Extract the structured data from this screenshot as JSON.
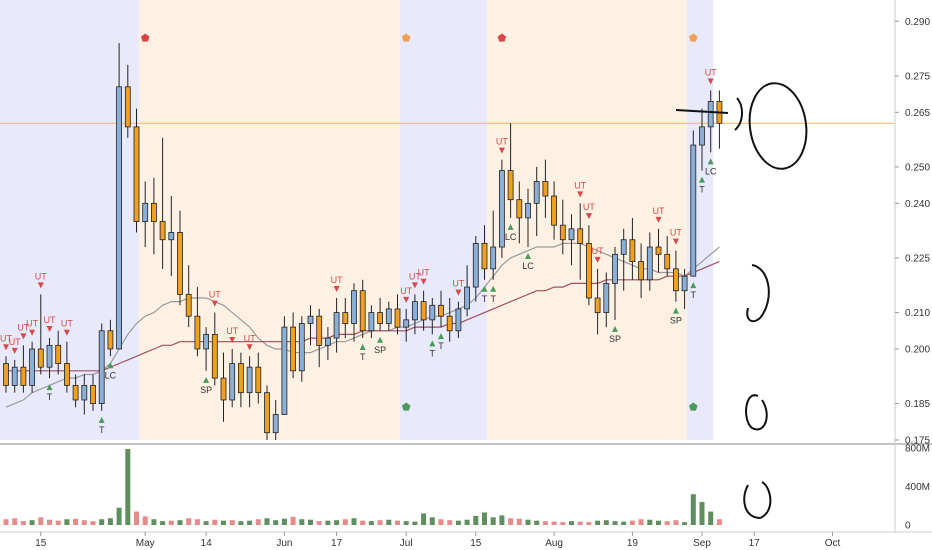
{
  "chart_data": {
    "type": "candlestick",
    "price_axis": {
      "ticks": [
        "0.290",
        "0.275",
        "0.265",
        "0.250",
        "0.240",
        "0.225",
        "0.210",
        "0.200",
        "0.185",
        "0.175"
      ],
      "range": [
        0.175,
        0.292
      ]
    },
    "volume_axis": {
      "ticks": [
        "800M",
        "400M",
        "0"
      ],
      "range": [
        0,
        800
      ]
    },
    "x_axis": {
      "ticks": [
        {
          "label": "15",
          "i": 4
        },
        {
          "label": "May",
          "i": 16
        },
        {
          "label": "14",
          "i": 23
        },
        {
          "label": "Jun",
          "i": 32
        },
        {
          "label": "17",
          "i": 38
        },
        {
          "label": "Jul",
          "i": 46
        },
        {
          "label": "15",
          "i": 54
        },
        {
          "label": "Aug",
          "i": 63
        },
        {
          "label": "19",
          "i": 72
        },
        {
          "label": "Sep",
          "i": 80
        },
        {
          "label": "17",
          "i": 86
        },
        {
          "label": "Oct",
          "i": 95
        }
      ]
    },
    "price_line": 0.262,
    "zones": [
      {
        "start": -0.5,
        "end": 15.5,
        "color": "#e8e9fb"
      },
      {
        "start": 15.5,
        "end": 45.5,
        "color": "#fdf1e4"
      },
      {
        "start": 45.5,
        "end": 55.5,
        "color": "#e8e9fb"
      },
      {
        "start": 55.5,
        "end": 78.5,
        "color": "#fdf1e4"
      },
      {
        "start": 78.5,
        "end": 81.5,
        "color": "#e8e9fb"
      }
    ],
    "candles": [
      [
        0.196,
        0.198,
        0.188,
        0.19
      ],
      [
        0.19,
        0.197,
        0.188,
        0.195
      ],
      [
        0.195,
        0.201,
        0.188,
        0.19
      ],
      [
        0.19,
        0.202,
        0.188,
        0.2
      ],
      [
        0.2,
        0.215,
        0.193,
        0.195
      ],
      [
        0.195,
        0.203,
        0.192,
        0.201
      ],
      [
        0.201,
        0.205,
        0.193,
        0.196
      ],
      [
        0.196,
        0.202,
        0.188,
        0.19
      ],
      [
        0.19,
        0.193,
        0.184,
        0.186
      ],
      [
        0.186,
        0.193,
        0.182,
        0.19
      ],
      [
        0.19,
        0.193,
        0.183,
        0.185
      ],
      [
        0.185,
        0.207,
        0.183,
        0.205
      ],
      [
        0.205,
        0.208,
        0.198,
        0.2
      ],
      [
        0.2,
        0.284,
        0.2,
        0.272
      ],
      [
        0.272,
        0.278,
        0.258,
        0.261
      ],
      [
        0.261,
        0.266,
        0.232,
        0.235
      ],
      [
        0.235,
        0.246,
        0.228,
        0.24
      ],
      [
        0.24,
        0.247,
        0.226,
        0.235
      ],
      [
        0.235,
        0.258,
        0.222,
        0.23
      ],
      [
        0.23,
        0.242,
        0.22,
        0.232
      ],
      [
        0.232,
        0.238,
        0.212,
        0.215
      ],
      [
        0.215,
        0.223,
        0.206,
        0.209
      ],
      [
        0.209,
        0.217,
        0.198,
        0.2
      ],
      [
        0.2,
        0.206,
        0.194,
        0.204
      ],
      [
        0.204,
        0.21,
        0.19,
        0.192
      ],
      [
        0.192,
        0.199,
        0.18,
        0.186
      ],
      [
        0.186,
        0.2,
        0.184,
        0.196
      ],
      [
        0.196,
        0.199,
        0.184,
        0.188
      ],
      [
        0.188,
        0.198,
        0.184,
        0.195
      ],
      [
        0.195,
        0.199,
        0.185,
        0.188
      ],
      [
        0.188,
        0.19,
        0.175,
        0.177
      ],
      [
        0.177,
        0.186,
        0.175,
        0.182
      ],
      [
        0.182,
        0.209,
        0.182,
        0.206
      ],
      [
        0.206,
        0.21,
        0.192,
        0.194
      ],
      [
        0.194,
        0.209,
        0.191,
        0.207
      ],
      [
        0.207,
        0.212,
        0.201,
        0.209
      ],
      [
        0.209,
        0.211,
        0.195,
        0.201
      ],
      [
        0.201,
        0.206,
        0.197,
        0.203
      ],
      [
        0.203,
        0.214,
        0.199,
        0.21
      ],
      [
        0.21,
        0.214,
        0.203,
        0.207
      ],
      [
        0.207,
        0.218,
        0.202,
        0.216
      ],
      [
        0.216,
        0.219,
        0.203,
        0.205
      ],
      [
        0.205,
        0.212,
        0.203,
        0.21
      ],
      [
        0.21,
        0.214,
        0.205,
        0.207
      ],
      [
        0.207,
        0.213,
        0.205,
        0.211
      ],
      [
        0.211,
        0.215,
        0.204,
        0.206
      ],
      [
        0.206,
        0.211,
        0.202,
        0.208
      ],
      [
        0.208,
        0.215,
        0.204,
        0.213
      ],
      [
        0.213,
        0.216,
        0.205,
        0.208
      ],
      [
        0.208,
        0.214,
        0.204,
        0.212
      ],
      [
        0.212,
        0.216,
        0.206,
        0.209
      ],
      [
        0.209,
        0.214,
        0.202,
        0.205
      ],
      [
        0.205,
        0.213,
        0.203,
        0.211
      ],
      [
        0.211,
        0.223,
        0.209,
        0.217
      ],
      [
        0.217,
        0.231,
        0.213,
        0.229
      ],
      [
        0.229,
        0.234,
        0.219,
        0.222
      ],
      [
        0.222,
        0.238,
        0.219,
        0.228
      ],
      [
        0.228,
        0.252,
        0.225,
        0.249
      ],
      [
        0.249,
        0.262,
        0.236,
        0.241
      ],
      [
        0.241,
        0.246,
        0.229,
        0.236
      ],
      [
        0.236,
        0.244,
        0.228,
        0.24
      ],
      [
        0.24,
        0.25,
        0.231,
        0.246
      ],
      [
        0.246,
        0.252,
        0.236,
        0.242
      ],
      [
        0.242,
        0.246,
        0.23,
        0.234
      ],
      [
        0.234,
        0.241,
        0.226,
        0.23
      ],
      [
        0.23,
        0.237,
        0.223,
        0.233
      ],
      [
        0.233,
        0.24,
        0.219,
        0.229
      ],
      [
        0.229,
        0.234,
        0.212,
        0.214
      ],
      [
        0.214,
        0.222,
        0.204,
        0.21
      ],
      [
        0.21,
        0.221,
        0.206,
        0.218
      ],
      [
        0.218,
        0.228,
        0.208,
        0.226
      ],
      [
        0.226,
        0.233,
        0.216,
        0.23
      ],
      [
        0.23,
        0.236,
        0.219,
        0.224
      ],
      [
        0.224,
        0.229,
        0.214,
        0.219
      ],
      [
        0.219,
        0.232,
        0.216,
        0.228
      ],
      [
        0.228,
        0.233,
        0.221,
        0.226
      ],
      [
        0.226,
        0.231,
        0.22,
        0.222
      ],
      [
        0.222,
        0.227,
        0.213,
        0.216
      ],
      [
        0.216,
        0.222,
        0.211,
        0.22
      ],
      [
        0.22,
        0.26,
        0.22,
        0.256
      ],
      [
        0.256,
        0.266,
        0.249,
        0.261
      ],
      [
        0.261,
        0.271,
        0.254,
        0.268
      ],
      [
        0.268,
        0.271,
        0.255,
        0.262
      ]
    ],
    "volume": [
      60,
      70,
      40,
      50,
      80,
      55,
      45,
      60,
      65,
      50,
      40,
      60,
      70,
      180,
      790,
      140,
      90,
      60,
      40,
      45,
      50,
      70,
      60,
      40,
      55,
      45,
      50,
      40,
      45,
      60,
      70,
      50,
      65,
      85,
      60,
      55,
      40,
      45,
      50,
      60,
      70,
      45,
      40,
      50,
      55,
      45,
      40,
      35,
      120,
      80,
      60,
      50,
      45,
      55,
      95,
      130,
      80,
      100,
      70,
      65,
      55,
      45,
      40,
      35,
      30,
      40,
      35,
      30,
      45,
      50,
      40,
      35,
      45,
      60,
      55,
      45,
      40,
      50,
      30,
      320,
      240,
      140,
      60
    ],
    "volume_up": [
      0,
      0,
      0,
      1,
      0,
      0,
      0,
      1,
      0,
      0,
      0,
      1,
      1,
      1,
      1,
      0,
      0,
      1,
      1,
      0,
      1,
      0,
      0,
      1,
      0,
      1,
      0,
      1,
      1,
      0,
      1,
      1,
      1,
      0,
      1,
      1,
      0,
      1,
      1,
      0,
      1,
      0,
      1,
      0,
      1,
      0,
      1,
      1,
      1,
      1,
      0,
      0,
      1,
      1,
      1,
      1,
      1,
      1,
      0,
      0,
      1,
      1,
      0,
      0,
      0,
      1,
      0,
      0,
      1,
      1,
      1,
      1,
      0,
      0,
      1,
      1,
      0,
      0,
      1,
      1,
      1,
      1,
      0
    ],
    "ma_gray": [
      0.184,
      0.185,
      0.186,
      0.188,
      0.189,
      0.19,
      0.191,
      0.192,
      0.192,
      0.193,
      0.193,
      0.194,
      0.196,
      0.2,
      0.204,
      0.207,
      0.209,
      0.21,
      0.212,
      0.213,
      0.213,
      0.214,
      0.214,
      0.214,
      0.213,
      0.212,
      0.21,
      0.208,
      0.206,
      0.203,
      0.201,
      0.2,
      0.2,
      0.199,
      0.199,
      0.199,
      0.2,
      0.201,
      0.202,
      0.202,
      0.203,
      0.204,
      0.205,
      0.205,
      0.205,
      0.206,
      0.206,
      0.207,
      0.208,
      0.209,
      0.209,
      0.21,
      0.211,
      0.212,
      0.214,
      0.217,
      0.22,
      0.223,
      0.225,
      0.226,
      0.227,
      0.228,
      0.228,
      0.228,
      0.229,
      0.229,
      0.229,
      0.228,
      0.227,
      0.226,
      0.225,
      0.224,
      0.223,
      0.222,
      0.222,
      0.221,
      0.221,
      0.221,
      0.22,
      0.222,
      0.224,
      0.226,
      0.228
    ],
    "ma_maroon": [
      0.194,
      0.194,
      0.194,
      0.194,
      0.194,
      0.194,
      0.194,
      0.194,
      0.194,
      0.194,
      0.194,
      0.194,
      0.195,
      0.196,
      0.197,
      0.198,
      0.199,
      0.2,
      0.201,
      0.201,
      0.202,
      0.202,
      0.202,
      0.202,
      0.202,
      0.202,
      0.202,
      0.202,
      0.202,
      0.202,
      0.202,
      0.202,
      0.202,
      0.202,
      0.202,
      0.203,
      0.203,
      0.203,
      0.204,
      0.204,
      0.204,
      0.205,
      0.205,
      0.205,
      0.205,
      0.205,
      0.205,
      0.206,
      0.206,
      0.206,
      0.206,
      0.207,
      0.207,
      0.208,
      0.209,
      0.21,
      0.211,
      0.212,
      0.213,
      0.214,
      0.215,
      0.216,
      0.216,
      0.217,
      0.217,
      0.218,
      0.218,
      0.218,
      0.218,
      0.219,
      0.219,
      0.219,
      0.219,
      0.219,
      0.219,
      0.219,
      0.22,
      0.22,
      0.22,
      0.221,
      0.222,
      0.223,
      0.224
    ],
    "signals_top": [
      {
        "i": 0,
        "label": "UT"
      },
      {
        "i": 1,
        "label": "UT"
      },
      {
        "i": 2,
        "label": "UT"
      },
      {
        "i": 3,
        "label": "UT"
      },
      {
        "i": 4,
        "label": "UT"
      },
      {
        "i": 5,
        "label": "UT"
      },
      {
        "i": 7,
        "label": "UT"
      },
      {
        "i": 24,
        "label": "UT"
      },
      {
        "i": 26,
        "label": "UT"
      },
      {
        "i": 28,
        "label": "UT"
      },
      {
        "i": 38,
        "label": "UT"
      },
      {
        "i": 46,
        "label": "UT"
      },
      {
        "i": 47,
        "label": "UT"
      },
      {
        "i": 48,
        "label": "UT"
      },
      {
        "i": 52,
        "label": "UT"
      },
      {
        "i": 57,
        "label": "UT"
      },
      {
        "i": 66,
        "label": "UT"
      },
      {
        "i": 67,
        "label": "UT"
      },
      {
        "i": 68,
        "label": "UT"
      },
      {
        "i": 75,
        "label": "UT"
      },
      {
        "i": 77,
        "label": "UT"
      },
      {
        "i": 81,
        "label": "UT"
      }
    ],
    "signals_bottom": [
      {
        "i": 5,
        "label": "T"
      },
      {
        "i": 11,
        "label": "T"
      },
      {
        "i": 12,
        "label": "LC"
      },
      {
        "i": 23,
        "label": "SP"
      },
      {
        "i": 41,
        "label": "T"
      },
      {
        "i": 43,
        "label": "SP"
      },
      {
        "i": 49,
        "label": "T"
      },
      {
        "i": 50,
        "label": "T"
      },
      {
        "i": 55,
        "label": "T"
      },
      {
        "i": 56,
        "label": "T"
      },
      {
        "i": 58,
        "label": "LC"
      },
      {
        "i": 60,
        "label": "LC"
      },
      {
        "i": 70,
        "label": "SP"
      },
      {
        "i": 77,
        "label": "SP"
      },
      {
        "i": 79,
        "label": "T"
      },
      {
        "i": 80,
        "label": "T"
      },
      {
        "i": 81,
        "label": "LC"
      }
    ],
    "markers_top": [
      {
        "i": 16,
        "color": "#d94848"
      },
      {
        "i": 46,
        "color": "#f0a050"
      },
      {
        "i": 57,
        "color": "#d94848"
      },
      {
        "i": 79,
        "color": "#f0a050"
      }
    ],
    "markers_bottom": [
      {
        "i": 46,
        "color": "#4a9a5a"
      },
      {
        "i": 79,
        "color": "#4a9a5a"
      }
    ],
    "colors": {
      "up": "#8bb0d8",
      "down": "#f0a020",
      "vol_up": "#5f8f5f",
      "vol_down": "#e88a8a",
      "ma_gray": "#9a9a9a",
      "ma_maroon": "#a05060",
      "price_line": "#f5b860",
      "signal_red": "#d94848",
      "signal_green": "#4a9a5a"
    }
  }
}
